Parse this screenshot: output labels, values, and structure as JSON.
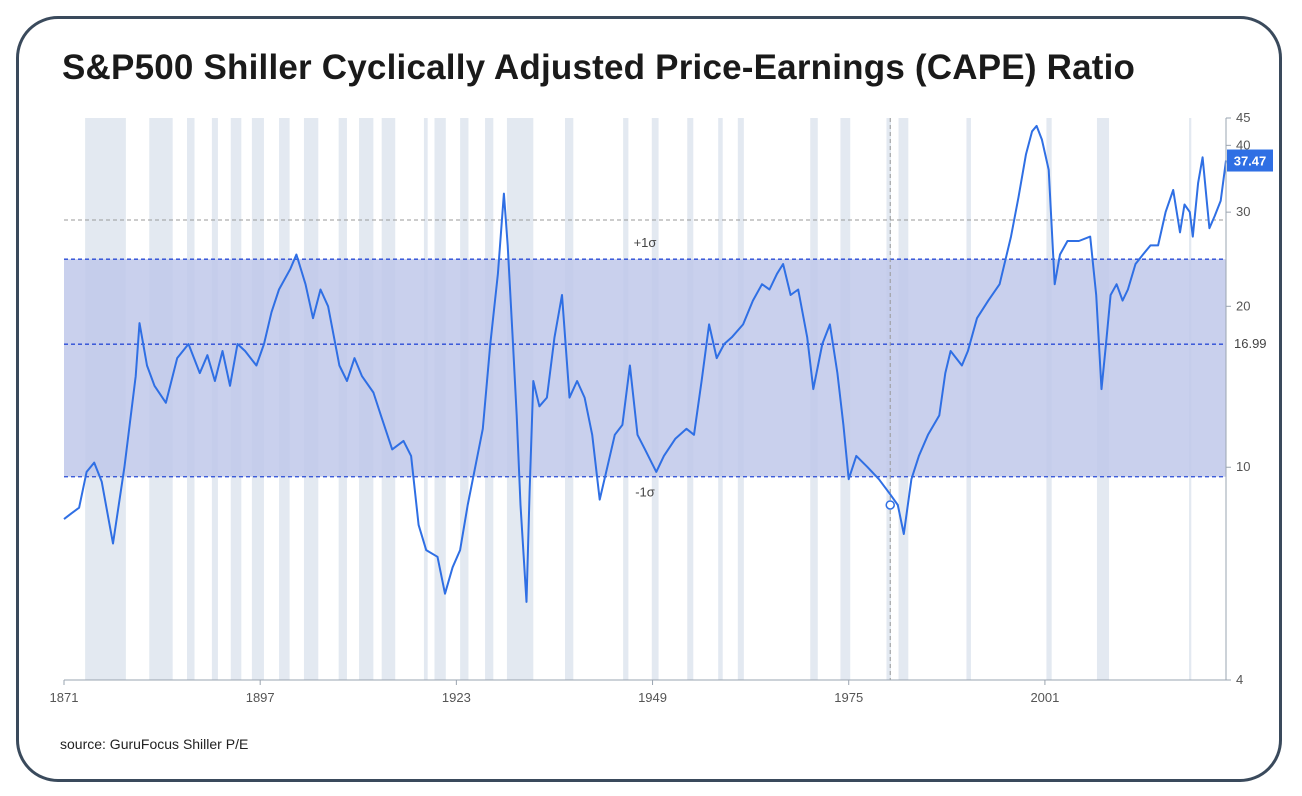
{
  "title": "S&P500 Shiller Cyclically Adjusted Price-Earnings (CAPE) Ratio",
  "source": "source: GuruFocus Shiller P/E",
  "colors": {
    "line": "#2f6fe4",
    "band": "#bfc8ea",
    "recession": "#e3e9f1",
    "reference": "#2a4bd6",
    "label_bg": "#2f6fe4"
  },
  "chart_data": {
    "type": "line",
    "title": "S&P500 Shiller Cyclically Adjusted Price-Earnings (CAPE) Ratio",
    "xlabel": "",
    "ylabel": "",
    "xlim": [
      1871,
      2025
    ],
    "ylim": [
      4,
      45
    ],
    "y_ticks": [
      4,
      10,
      20,
      30,
      40,
      45
    ],
    "x_ticks": [
      1871,
      1897,
      1923,
      1949,
      1975,
      2001
    ],
    "grid": false,
    "legend": "none",
    "current_value": {
      "label": "37.47",
      "x": 2025,
      "y": 37.47
    },
    "mean": {
      "label": "16.99",
      "y": 16.99
    },
    "band": {
      "upper": 24.5,
      "lower": 9.6,
      "upper_label": "+1σ",
      "lower_label": "-1σ"
    },
    "reference_line": {
      "y": 29
    },
    "vertical_marker": {
      "x": 1980.5
    },
    "recessions": [
      [
        1873.8,
        1879.2
      ],
      [
        1882.3,
        1885.4
      ],
      [
        1887.3,
        1888.3
      ],
      [
        1890.6,
        1891.4
      ],
      [
        1893.1,
        1894.5
      ],
      [
        1895.9,
        1897.5
      ],
      [
        1899.5,
        1900.9
      ],
      [
        1902.8,
        1904.7
      ],
      [
        1907.4,
        1908.5
      ],
      [
        1910.1,
        1912.0
      ],
      [
        1913.1,
        1914.9
      ],
      [
        1918.7,
        1919.2
      ],
      [
        1920.1,
        1921.6
      ],
      [
        1923.5,
        1924.6
      ],
      [
        1926.8,
        1927.9
      ],
      [
        1929.7,
        1933.2
      ],
      [
        1937.4,
        1938.5
      ],
      [
        1945.1,
        1945.8
      ],
      [
        1948.9,
        1949.8
      ],
      [
        1953.6,
        1954.4
      ],
      [
        1957.7,
        1958.3
      ],
      [
        1960.3,
        1961.1
      ],
      [
        1969.9,
        1970.9
      ],
      [
        1973.9,
        1975.2
      ],
      [
        1980.0,
        1980.6
      ],
      [
        1981.6,
        1982.9
      ],
      [
        1990.6,
        1991.2
      ],
      [
        2001.2,
        2001.9
      ],
      [
        2007.9,
        2009.5
      ],
      [
        2020.1,
        2020.4
      ]
    ],
    "series": [
      {
        "x": [
          1871.0,
          1872.0,
          1873.0,
          1874.0,
          1875.0,
          1876.0,
          1877.5,
          1879.0,
          1880.5,
          1881.0,
          1882.0,
          1883.0,
          1884.5,
          1886.0,
          1887.5,
          1889.0,
          1890.0,
          1891.0,
          1892.0,
          1893.0,
          1894.0,
          1895.0,
          1896.5,
          1897.5,
          1898.5,
          1899.5,
          1901.0,
          1901.8,
          1903.0,
          1904.0,
          1905.0,
          1906.0,
          1907.5,
          1908.5,
          1909.5,
          1910.5,
          1912.0,
          1913.0,
          1914.5,
          1916.0,
          1917.0,
          1918.0,
          1919.0,
          1920.5,
          1921.5,
          1922.5,
          1923.5,
          1924.5,
          1925.5,
          1926.5,
          1927.5,
          1928.5,
          1929.3,
          1929.8,
          1930.5,
          1931.0,
          1931.5,
          1932.3,
          1932.7,
          1933.2,
          1934.0,
          1935.0,
          1936.0,
          1937.0,
          1938.0,
          1939.0,
          1940.0,
          1941.0,
          1942.0,
          1943.0,
          1944.0,
          1945.0,
          1946.0,
          1947.0,
          1948.0,
          1949.5,
          1950.5,
          1952.0,
          1953.5,
          1954.5,
          1955.5,
          1956.5,
          1957.5,
          1958.5,
          1959.5,
          1961.0,
          1962.3,
          1963.5,
          1964.5,
          1965.5,
          1966.3,
          1967.3,
          1968.3,
          1969.5,
          1970.3,
          1971.5,
          1972.5,
          1973.5,
          1974.3,
          1975.0,
          1976.0,
          1977.5,
          1979.0,
          1980.5,
          1981.5,
          1982.3,
          1983.3,
          1984.3,
          1985.5,
          1987.0,
          1987.8,
          1988.5,
          1990.0,
          1990.8,
          1992.0,
          1993.5,
          1995.0,
          1996.5,
          1997.5,
          1998.5,
          1999.3,
          1999.9,
          2000.6,
          2001.5,
          2002.3,
          2003.0,
          2004.0,
          2005.5,
          2007.0,
          2007.8,
          2008.5,
          2009.1,
          2009.7,
          2010.5,
          2011.3,
          2012.0,
          2013.0,
          2014.0,
          2015.0,
          2016.0,
          2017.0,
          2018.0,
          2018.9,
          2019.5,
          2020.2,
          2020.6,
          2021.3,
          2021.9,
          2022.5,
          2022.8,
          2023.5,
          2024.3,
          2025.0
        ],
        "y": [
          8.0,
          8.2,
          8.4,
          9.8,
          10.2,
          9.4,
          7.2,
          10.0,
          14.8,
          18.6,
          15.5,
          14.2,
          13.2,
          16.0,
          17.0,
          15.0,
          16.2,
          14.5,
          16.5,
          14.2,
          17.0,
          16.5,
          15.5,
          17.0,
          19.5,
          21.5,
          23.5,
          25.0,
          22.0,
          19.0,
          21.5,
          20.0,
          15.5,
          14.5,
          16.0,
          14.8,
          13.8,
          12.5,
          10.8,
          11.2,
          10.5,
          7.8,
          7.0,
          6.8,
          5.8,
          6.5,
          7.0,
          8.5,
          10.0,
          11.8,
          17.0,
          23.0,
          32.5,
          26.0,
          17.0,
          12.5,
          8.5,
          5.6,
          9.0,
          14.5,
          13.0,
          13.5,
          17.5,
          21.0,
          13.5,
          14.5,
          13.5,
          11.5,
          8.7,
          10.0,
          11.5,
          12.0,
          15.5,
          11.5,
          10.8,
          9.8,
          10.5,
          11.3,
          11.8,
          11.5,
          14.5,
          18.5,
          16.0,
          17.0,
          17.5,
          18.5,
          20.5,
          22.0,
          21.5,
          23.0,
          24.0,
          21.0,
          21.5,
          17.5,
          14.0,
          17.0,
          18.5,
          15.0,
          12.0,
          9.5,
          10.5,
          10.0,
          9.5,
          8.9,
          8.5,
          7.5,
          9.5,
          10.5,
          11.5,
          12.5,
          15.0,
          16.5,
          15.5,
          16.5,
          19.0,
          20.5,
          22.0,
          27.0,
          32.0,
          38.5,
          42.5,
          43.5,
          41.0,
          36.0,
          22.0,
          25.0,
          26.5,
          26.5,
          27.0,
          21.0,
          14.0,
          17.0,
          21.0,
          22.0,
          20.5,
          21.5,
          24.0,
          25.0,
          26.0,
          26.0,
          30.0,
          33.0,
          27.5,
          31.0,
          30.0,
          27.0,
          34.0,
          38.0,
          31.0,
          28.0,
          29.5,
          31.5,
          37.47
        ]
      }
    ]
  }
}
